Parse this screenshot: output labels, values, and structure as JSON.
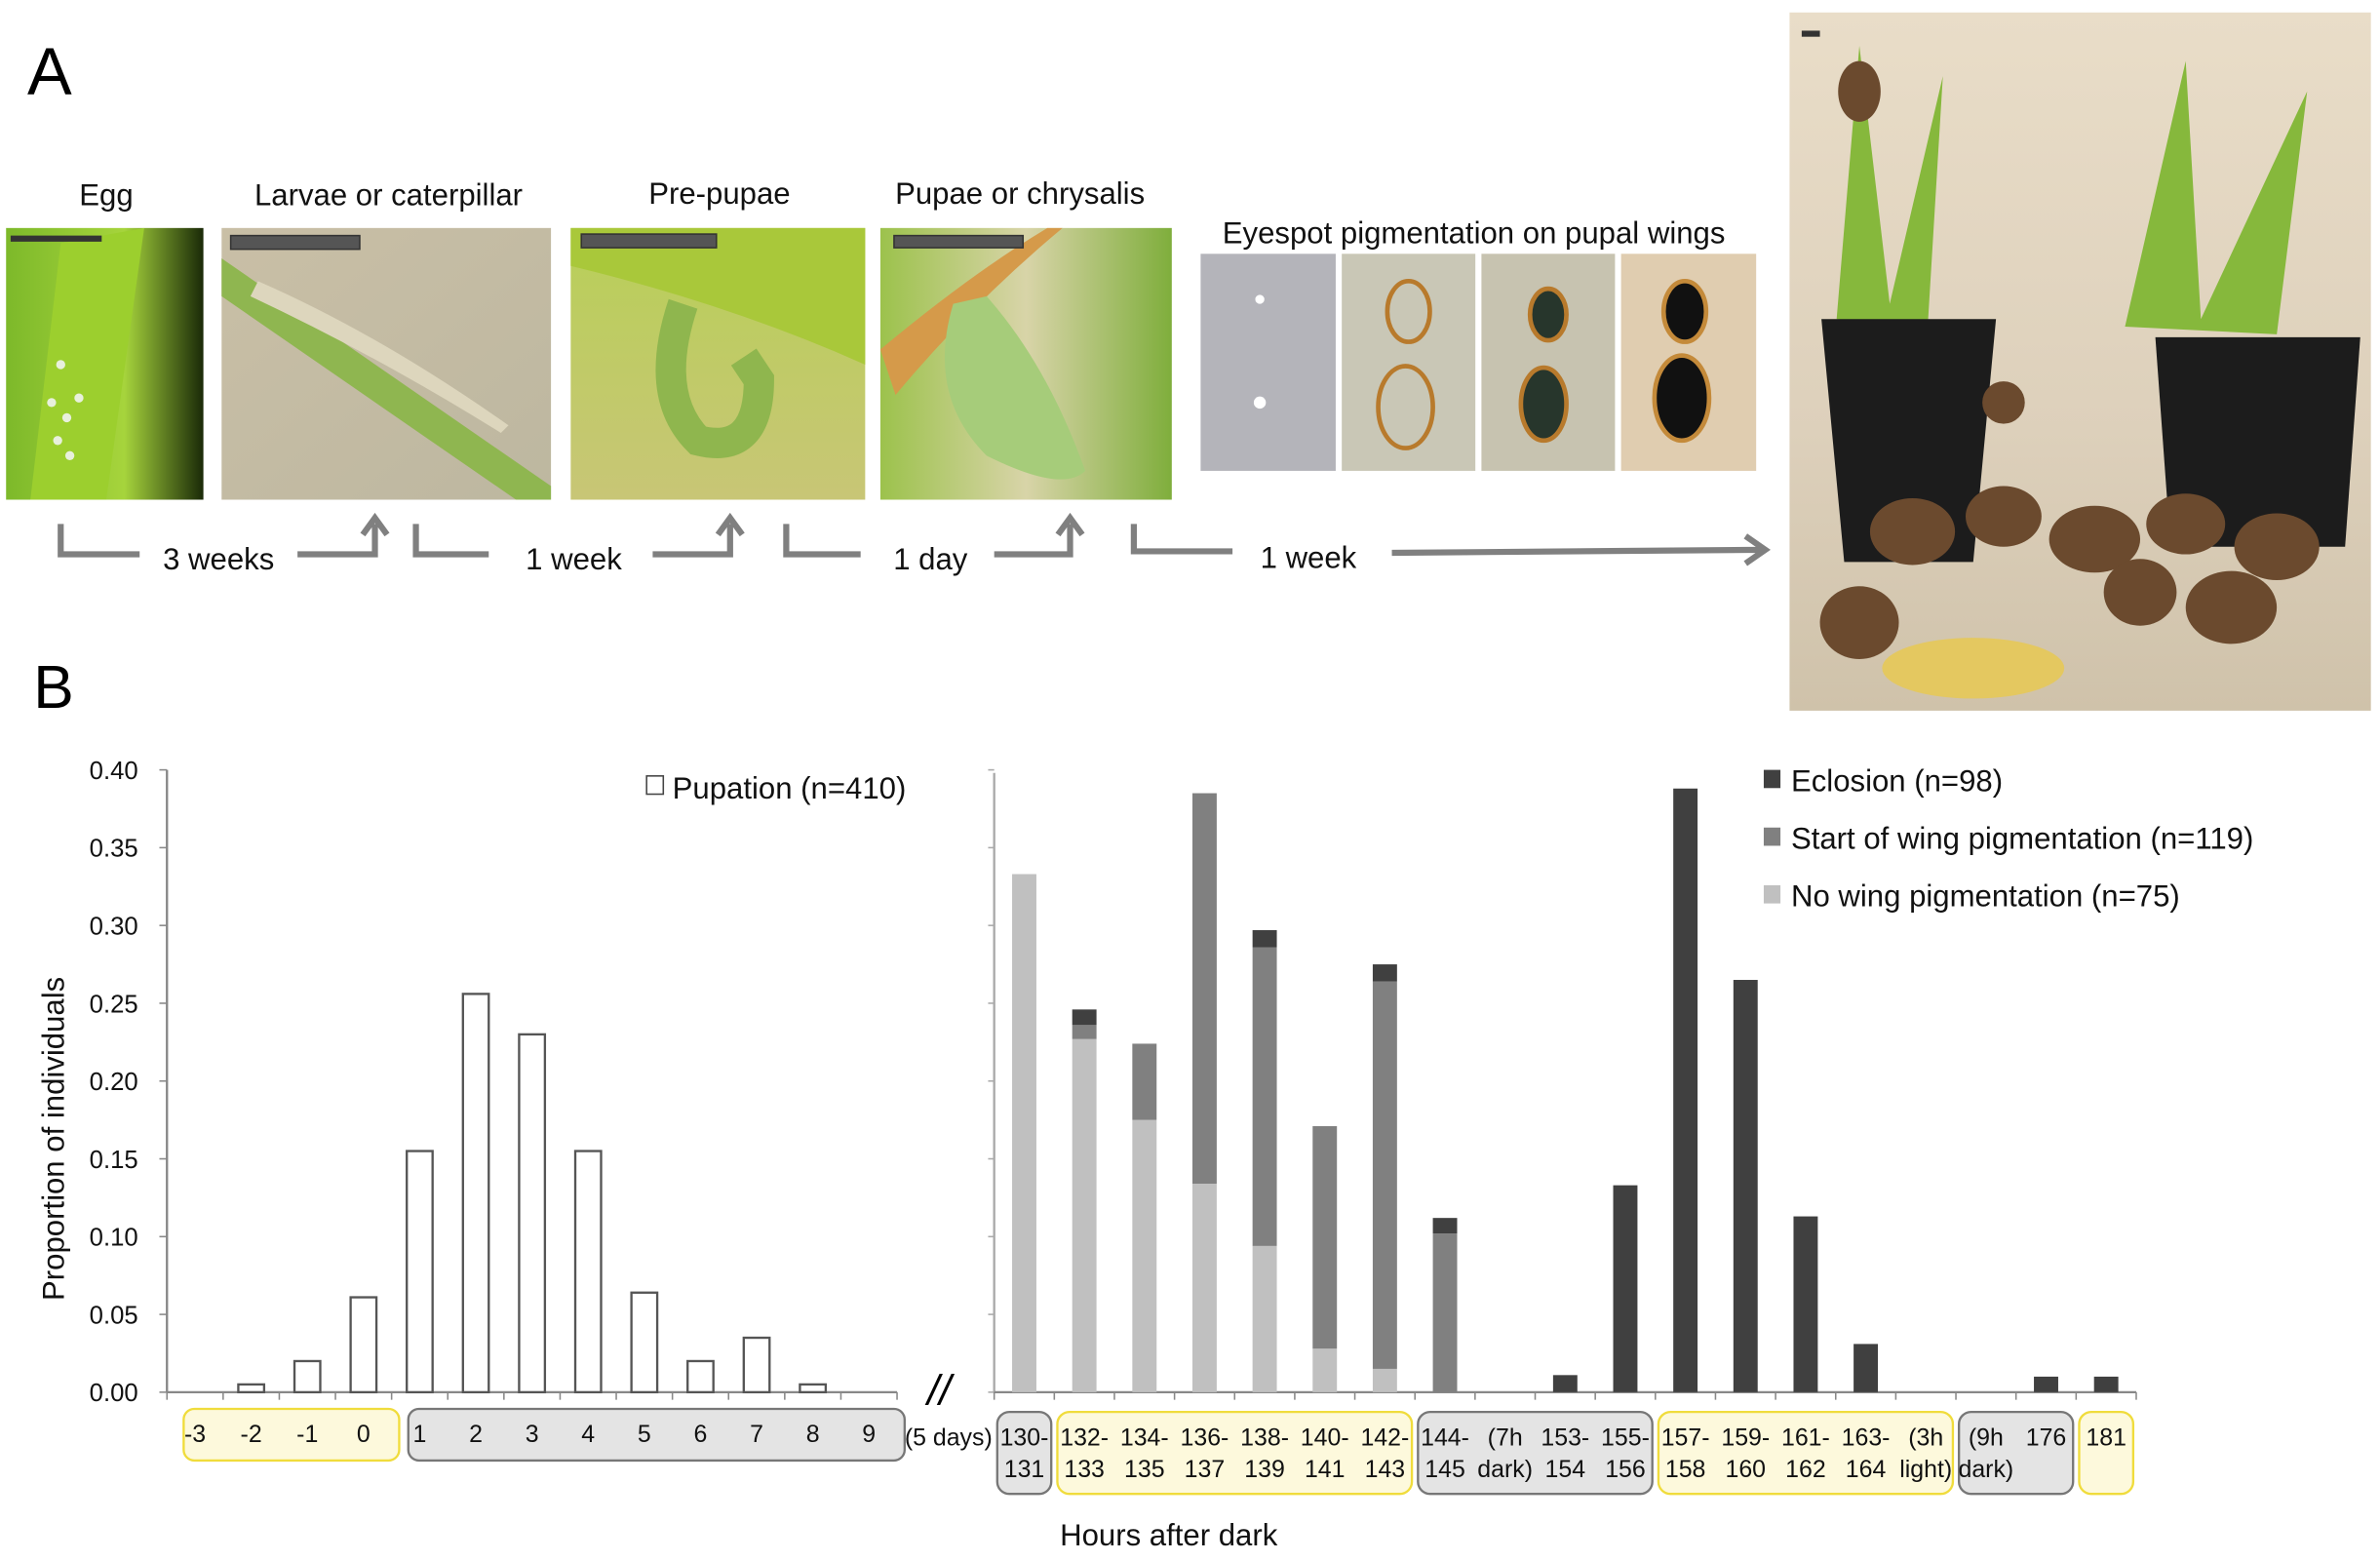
{
  "panel_a": {
    "label": "A",
    "stages": [
      "Egg",
      "Larvae or caterpillar",
      "Pre-pupae",
      "Pupae or chrysalis"
    ],
    "eyespot_title": "Eyespot pigmentation on pupal wings",
    "durations": [
      "3 weeks",
      "1 week",
      "1 day",
      "1 week"
    ]
  },
  "panel_b": {
    "label": "B"
  },
  "chart_data": [
    {
      "type": "bar",
      "title": "",
      "ylabel": "Proportion of individuals",
      "xlabel": "",
      "ylim": [
        0,
        0.4
      ],
      "yticks": [
        "0.00",
        "0.05",
        "0.10",
        "0.15",
        "0.20",
        "0.25",
        "0.30",
        "0.35",
        "0.40"
      ],
      "categories": [
        "-3",
        "-2",
        "-1",
        "0",
        "1",
        "2",
        "3",
        "4",
        "5",
        "6",
        "7",
        "8",
        "9"
      ],
      "series": [
        {
          "name": "Pupation (n=410)",
          "color": "#ffffff",
          "values": [
            0,
            0.005,
            0.02,
            0.061,
            0.155,
            0.256,
            0.23,
            0.155,
            0.064,
            0.02,
            0.035,
            0.005,
            0
          ]
        }
      ],
      "legend": "top-right",
      "axis_break_label": "(5 days)",
      "break_mark": "//",
      "category_groups": [
        {
          "from": 0,
          "to": 3,
          "shade": "light"
        },
        {
          "from": 4,
          "to": 12,
          "shade": "dark"
        }
      ]
    },
    {
      "type": "stacked-bar",
      "xlabel": "Hours after dark",
      "ylim": [
        0,
        0.4
      ],
      "categories": [
        [
          "130-",
          "131"
        ],
        [
          "132-",
          "133"
        ],
        [
          "134-",
          "135"
        ],
        [
          "136-",
          "137"
        ],
        [
          "138-",
          "139"
        ],
        [
          "140-",
          "141"
        ],
        [
          "142-",
          "143"
        ],
        [
          "144-",
          "145"
        ],
        [
          "(7h",
          "dark)"
        ],
        [
          "153-",
          "154"
        ],
        [
          "155-",
          "156"
        ],
        [
          "157-",
          "158"
        ],
        [
          "159-",
          "160"
        ],
        [
          "161-",
          "162"
        ],
        [
          "163-",
          "164"
        ],
        [
          "(3h",
          "light)"
        ],
        [
          "(9h",
          "dark)"
        ],
        [
          "176",
          ""
        ],
        [
          "181",
          ""
        ]
      ],
      "series": [
        {
          "name": "No wing pigmentation (n=75)",
          "color": "#c0c0c0",
          "values": [
            0.333,
            0.227,
            0.175,
            0.134,
            0.094,
            0.028,
            0.015,
            0,
            0,
            0,
            0,
            0,
            0,
            0,
            0,
            0,
            0,
            0,
            0
          ]
        },
        {
          "name": "Start of wing pigmentation (n=119)",
          "color": "#808080",
          "values": [
            0,
            0.009,
            0.049,
            0.251,
            0.192,
            0.143,
            0.249,
            0.102,
            0,
            0,
            0,
            0,
            0,
            0,
            0,
            0,
            0,
            0,
            0
          ]
        },
        {
          "name": "Eclosion (n=98)",
          "color": "#404040",
          "values": [
            0,
            0.01,
            0,
            0,
            0.011,
            0,
            0.011,
            0.01,
            0,
            0.011,
            0.133,
            0.388,
            0.265,
            0.113,
            0.031,
            0,
            0,
            0.01,
            0.01
          ]
        }
      ],
      "legend": "top-right",
      "category_groups": [
        {
          "from": 0,
          "to": 0,
          "shade": "dark"
        },
        {
          "from": 1,
          "to": 6,
          "shade": "light"
        },
        {
          "from": 7,
          "to": 10,
          "shade": "dark"
        },
        {
          "from": 11,
          "to": 15,
          "shade": "light"
        },
        {
          "from": 16,
          "to": 17,
          "shade": "dark"
        },
        {
          "from": 18,
          "to": 18,
          "shade": "light"
        }
      ]
    }
  ]
}
